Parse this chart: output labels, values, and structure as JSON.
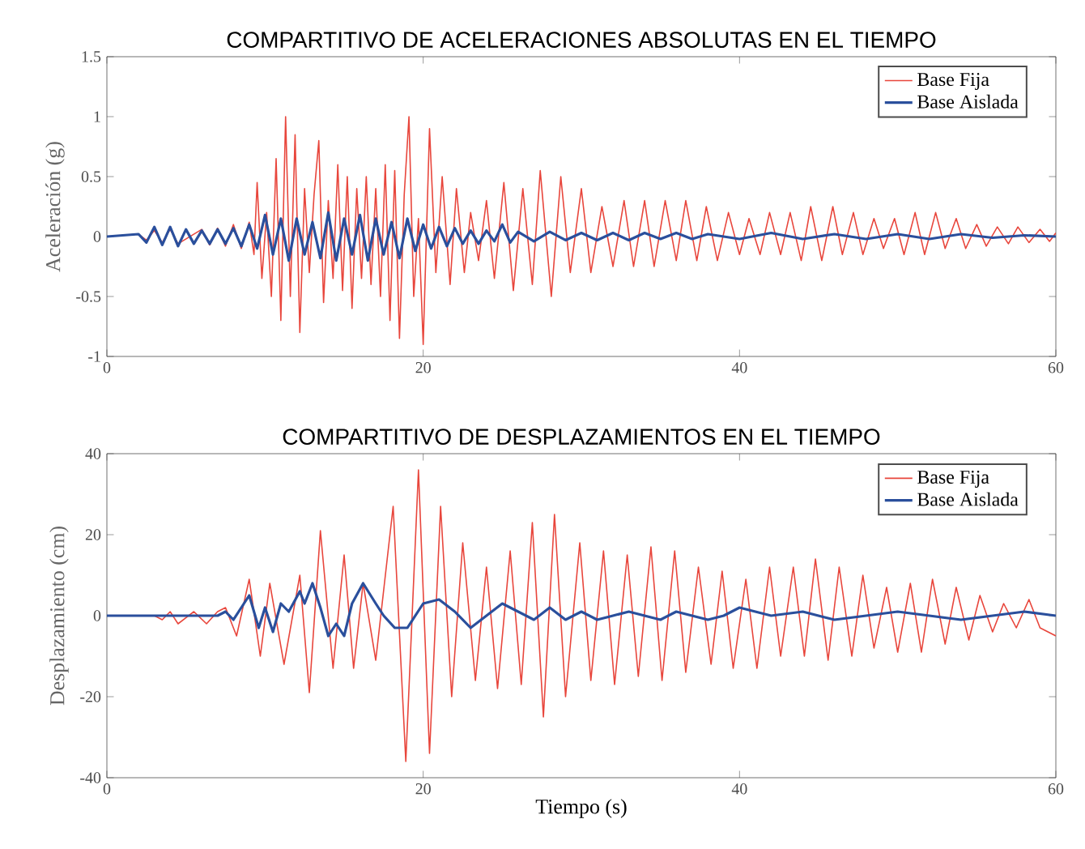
{
  "chart_data": [
    {
      "type": "line",
      "title": "COMPARTITIVO DE ACELERACIONES ABSOLUTAS EN EL TIEMPO",
      "ylabel": "Aceleración (g)",
      "xlim": [
        0,
        60
      ],
      "ylim": [
        -1,
        1.5
      ],
      "xticks": [
        0,
        20,
        40,
        60
      ],
      "yticks": [
        -1,
        -0.5,
        0,
        0.5,
        1,
        1.5
      ],
      "grid": false,
      "legend": "top right",
      "marker": "none",
      "series": [
        {
          "name": "Base Fija",
          "color": "#e8463c",
          "x": [
            0,
            2,
            2.5,
            3,
            3.5,
            4,
            4.5,
            5,
            5.5,
            6,
            6.5,
            7,
            7.5,
            8,
            8.5,
            9,
            9.3,
            9.5,
            9.8,
            10.1,
            10.4,
            10.7,
            11,
            11.3,
            11.6,
            11.9,
            12.2,
            12.5,
            12.8,
            13.1,
            13.4,
            13.7,
            14,
            14.3,
            14.6,
            14.9,
            15.2,
            15.5,
            15.8,
            16.1,
            16.4,
            16.7,
            17,
            17.3,
            17.6,
            17.9,
            18.2,
            18.5,
            18.8,
            19.1,
            19.4,
            19.7,
            20,
            20.4,
            20.8,
            21.2,
            21.7,
            22.1,
            22.6,
            23,
            23.5,
            24,
            24.5,
            25.1,
            25.7,
            26.3,
            26.9,
            27.4,
            28.1,
            28.7,
            29.3,
            30,
            30.6,
            31.3,
            32,
            32.7,
            33.3,
            34,
            34.6,
            35.3,
            36,
            36.6,
            37.3,
            37.9,
            38.6,
            39.3,
            40,
            40.6,
            41.3,
            41.9,
            42.6,
            43.2,
            43.9,
            44.5,
            45.2,
            45.9,
            46.5,
            47.2,
            47.8,
            48.5,
            49.1,
            49.8,
            50.4,
            51.1,
            51.7,
            52.4,
            53,
            53.7,
            54.3,
            55,
            55.6,
            56.3,
            57,
            57.6,
            58.3,
            59,
            59.6,
            60
          ],
          "values": [
            0,
            0.02,
            -0.03,
            0.05,
            -0.05,
            0.06,
            -0.06,
            null,
            null,
            0.06,
            -0.07,
            0.07,
            -0.08,
            0.1,
            -0.1,
            0.12,
            -0.15,
            0.45,
            -0.35,
            0.2,
            -0.5,
            0.65,
            -0.7,
            1.0,
            -0.5,
            0.85,
            -0.8,
            0.4,
            -0.3,
            0.35,
            0.8,
            -0.55,
            0.3,
            -0.35,
            0.6,
            -0.45,
            0.5,
            -0.6,
            0.4,
            -0.35,
            0.5,
            -0.4,
            0.4,
            -0.5,
            0.6,
            -0.7,
            0.55,
            -0.85,
            0.35,
            1.0,
            -0.5,
            0.15,
            -0.9,
            0.9,
            -0.3,
            0.5,
            -0.4,
            0.4,
            -0.3,
            0.2,
            -0.2,
            0.3,
            -0.35,
            0.45,
            -0.45,
            0.4,
            -0.4,
            0.55,
            -0.5,
            0.5,
            -0.3,
            0.4,
            -0.3,
            0.25,
            -0.25,
            0.3,
            -0.25,
            0.3,
            -0.25,
            0.3,
            -0.2,
            0.3,
            -0.2,
            0.25,
            -0.2,
            0.2,
            -0.15,
            0.15,
            -0.15,
            0.2,
            -0.15,
            0.2,
            -0.2,
            0.25,
            -0.2,
            0.25,
            -0.15,
            0.2,
            -0.15,
            0.15,
            -0.1,
            0.15,
            -0.15,
            0.2,
            -0.15,
            0.2,
            -0.1,
            0.15,
            -0.1,
            0.1,
            -0.08,
            0.08,
            -0.06,
            0.08,
            -0.05,
            0.06,
            -0.04,
            0.03
          ]
        },
        {
          "name": "Base Aislada",
          "color": "#2a4f9c",
          "x": [
            0,
            2,
            2.5,
            3,
            3.5,
            4,
            4.5,
            5,
            5.5,
            6,
            6.5,
            7,
            7.5,
            8,
            8.5,
            9,
            9.5,
            10,
            10.5,
            11,
            11.5,
            12,
            12.5,
            13,
            13.5,
            14,
            14.5,
            15,
            15.5,
            16,
            16.5,
            17,
            17.5,
            18,
            18.5,
            19,
            19.5,
            20,
            20.5,
            21,
            21.5,
            22,
            22.5,
            23,
            23.5,
            24,
            24.5,
            25,
            25.5,
            26,
            27,
            28,
            29,
            30,
            31,
            32,
            33,
            34,
            35,
            36,
            37,
            38,
            40,
            42,
            44,
            46,
            48,
            50,
            52,
            54,
            56,
            58,
            60
          ],
          "values": [
            0,
            0.02,
            -0.05,
            0.08,
            -0.07,
            0.08,
            -0.08,
            0.06,
            -0.06,
            0.05,
            -0.06,
            0.06,
            -0.06,
            0.07,
            -0.08,
            0.1,
            -0.1,
            0.18,
            -0.15,
            0.15,
            -0.2,
            0.15,
            -0.15,
            0.12,
            -0.18,
            0.2,
            -0.2,
            0.15,
            -0.15,
            0.18,
            -0.2,
            0.15,
            -0.15,
            0.12,
            -0.18,
            0.15,
            -0.12,
            0.1,
            -0.1,
            0.08,
            -0.08,
            0.07,
            -0.06,
            0.05,
            -0.06,
            0.05,
            -0.04,
            0.1,
            -0.05,
            0.04,
            -0.04,
            0.04,
            -0.03,
            0.03,
            -0.03,
            0.03,
            -0.03,
            0.03,
            -0.02,
            0.03,
            -0.02,
            0.02,
            -0.02,
            0.03,
            -0.02,
            0.02,
            -0.02,
            0.02,
            -0.02,
            0.02,
            -0.01,
            0.01,
            0
          ]
        }
      ]
    },
    {
      "type": "line",
      "title": "COMPARTITIVO DE DESPLAZAMIENTOS EN EL TIEMPO",
      "xlabel": "Tiempo (s)",
      "ylabel": "Desplazamiento (cm)",
      "xlim": [
        0,
        60
      ],
      "ylim": [
        -40,
        40
      ],
      "xticks": [
        0,
        20,
        40,
        60
      ],
      "yticks": [
        -40,
        -20,
        0,
        20,
        40
      ],
      "grid": false,
      "legend": "top right",
      "marker": "none",
      "series": [
        {
          "name": "Base Fija",
          "color": "#e8463c",
          "x": [
            0,
            3,
            3.5,
            4,
            4.5,
            5.5,
            6.3,
            7,
            7.5,
            8.2,
            9,
            9.7,
            10.3,
            11.2,
            12.2,
            12.8,
            13.5,
            14.3,
            15,
            15.6,
            16.2,
            17,
            18.1,
            18.9,
            19.7,
            20.4,
            21.1,
            21.8,
            22.5,
            23.3,
            24,
            24.7,
            25.5,
            26.2,
            26.9,
            27.6,
            28.3,
            29,
            29.9,
            30.6,
            31.4,
            32.1,
            32.9,
            33.6,
            34.4,
            35.1,
            35.9,
            36.6,
            37.4,
            38.2,
            38.9,
            39.6,
            40.4,
            41.1,
            41.9,
            42.6,
            43.4,
            44.1,
            44.8,
            45.6,
            46.3,
            47.1,
            47.8,
            48.5,
            49.3,
            50,
            50.8,
            51.5,
            52.2,
            53,
            53.7,
            54.5,
            55.2,
            56,
            56.7,
            57.5,
            58.3,
            59,
            60
          ],
          "values": [
            0,
            0,
            -1,
            1,
            -2,
            1,
            -2,
            1,
            2,
            -5,
            9,
            -10,
            8,
            -12,
            10,
            -19,
            21,
            -13,
            15,
            -13,
            8,
            -11,
            27,
            -36,
            36,
            -34,
            27,
            -20,
            18,
            -16,
            12,
            -18,
            16,
            -17,
            23,
            -25,
            25,
            -20,
            18,
            -16,
            16,
            -17,
            15,
            -15,
            17,
            -16,
            16,
            -14,
            12,
            -12,
            11,
            -13,
            9,
            -13,
            12,
            -10,
            12,
            -10,
            14,
            -11,
            12,
            -10,
            10,
            -8,
            7,
            -9,
            8,
            -9,
            9,
            -7,
            7,
            -6,
            5,
            -4,
            3,
            -3,
            4,
            -3,
            -5
          ]
        },
        {
          "name": "Base Aislada",
          "color": "#2a4f9c",
          "x": [
            0,
            7,
            7.5,
            8,
            9,
            9.6,
            10,
            10.5,
            11,
            11.5,
            12.2,
            12.5,
            13,
            13.5,
            14,
            14.5,
            15,
            15.5,
            16.2,
            17,
            17.5,
            18.2,
            19,
            20,
            21,
            22,
            23,
            24,
            25,
            26,
            27,
            28,
            29,
            30,
            31,
            32,
            33,
            34,
            35,
            36,
            37,
            38,
            39,
            40,
            42,
            44,
            46,
            48,
            50,
            52,
            54,
            56,
            58,
            60
          ],
          "values": [
            0,
            0,
            1,
            -1,
            5,
            -3,
            2,
            -4,
            3,
            1,
            6,
            3,
            8,
            2,
            -5,
            -2,
            -5,
            3,
            8,
            3,
            0,
            -3,
            -3,
            3,
            4,
            1,
            -3,
            0,
            3,
            1,
            -1,
            2,
            -1,
            1,
            -1,
            0,
            1,
            0,
            -1,
            1,
            0,
            -1,
            0,
            2,
            0,
            1,
            -1,
            0,
            1,
            0,
            -1,
            0,
            1,
            0
          ]
        }
      ]
    }
  ]
}
